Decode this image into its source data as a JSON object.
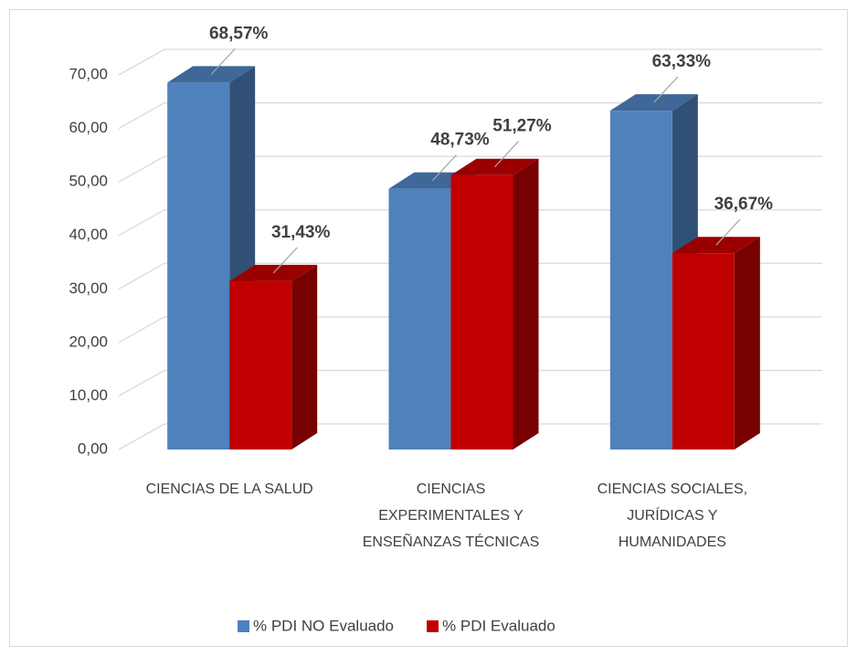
{
  "chart_data": {
    "type": "bar3d",
    "categories": [
      "CIENCIAS DE LA SALUD",
      "CIENCIAS EXPERIMENTALES Y ENSEÑANZAS TÉCNICAS",
      "CIENCIAS SOCIALES, JURÍDICAS Y HUMANIDADES"
    ],
    "series": [
      {
        "name": "% PDI NO Evaluado",
        "color": "#4f81bd",
        "values": [
          68.57,
          48.73,
          63.33
        ],
        "value_labels": [
          "68,57%",
          "48,73%",
          "63,33%"
        ]
      },
      {
        "name": "% PDI Evaluado",
        "color": "#c00000",
        "values": [
          31.43,
          51.27,
          36.67
        ],
        "value_labels": [
          "31,43%",
          "51,27%",
          "36,67%"
        ]
      }
    ],
    "ylim": [
      0,
      70
    ],
    "yticks": [
      {
        "value": 0,
        "label": "0,00"
      },
      {
        "value": 10,
        "label": "10,00"
      },
      {
        "value": 20,
        "label": "20,00"
      },
      {
        "value": 30,
        "label": "30,00"
      },
      {
        "value": 40,
        "label": "40,00"
      },
      {
        "value": 50,
        "label": "50,00"
      },
      {
        "value": 60,
        "label": "60,00"
      },
      {
        "value": 70,
        "label": "70,00"
      }
    ],
    "grid": true,
    "legend": "bottom"
  }
}
